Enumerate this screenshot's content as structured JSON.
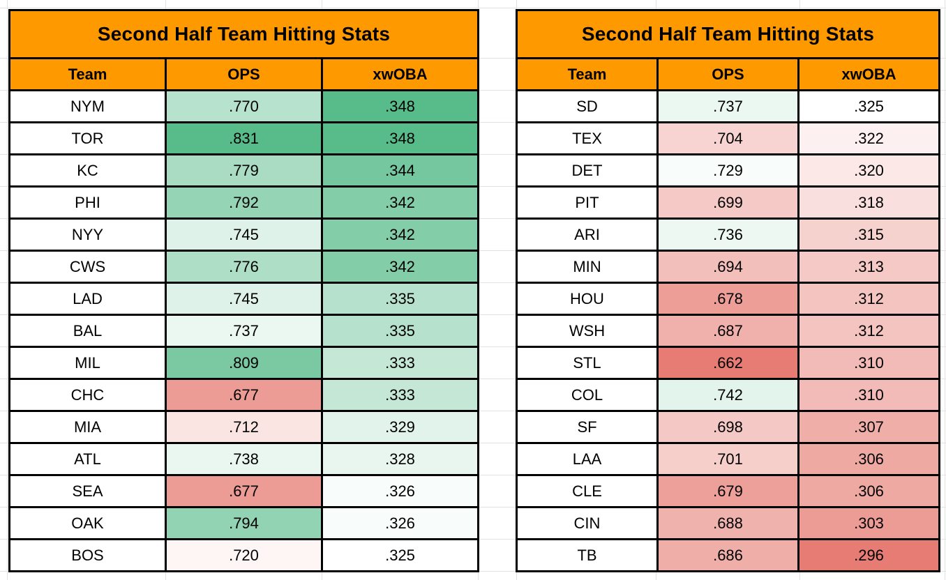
{
  "colors": {
    "header_bg": "#ff9900",
    "border": "#000000",
    "gridline": "#e2e2e2",
    "scale_green_max": "#57bb8a",
    "scale_red_min": "#e67c73",
    "scale_mid": "#ffffff"
  },
  "tables": [
    {
      "title": "Second Half Team Hitting Stats",
      "columns": [
        "Team",
        "OPS",
        "xwOBA"
      ],
      "rows": [
        {
          "team": "NYM",
          "ops": ".770",
          "ops_bg": "#b7e2cd",
          "xwoba": ".348",
          "xwoba_bg": "#57bb8a"
        },
        {
          "team": "TOR",
          "ops": ".831",
          "ops_bg": "#57bb8a",
          "xwoba": ".348",
          "xwoba_bg": "#57bb8a"
        },
        {
          "team": "KC",
          "ops": ".779",
          "ops_bg": "#a9dcc3",
          "xwoba": ".344",
          "xwoba_bg": "#74c79e"
        },
        {
          "team": "PHI",
          "ops": ".792",
          "ops_bg": "#95d4b5",
          "xwoba": ".342",
          "xwoba_bg": "#83cda9"
        },
        {
          "team": "NYY",
          "ops": ".745",
          "ops_bg": "#dff2e9",
          "xwoba": ".342",
          "xwoba_bg": "#83cda9"
        },
        {
          "team": "CWS",
          "ops": ".776",
          "ops_bg": "#aedec6",
          "xwoba": ".342",
          "xwoba_bg": "#83cda9"
        },
        {
          "team": "LAD",
          "ops": ".745",
          "ops_bg": "#dff2e9",
          "xwoba": ".335",
          "xwoba_bg": "#b6e1cc"
        },
        {
          "team": "BAL",
          "ops": ".737",
          "ops_bg": "#ebf7f1",
          "xwoba": ".335",
          "xwoba_bg": "#b6e1cc"
        },
        {
          "team": "MIL",
          "ops": ".809",
          "ops_bg": "#7ac9a2",
          "xwoba": ".333",
          "xwoba_bg": "#c5e7d6"
        },
        {
          "team": "CHC",
          "ops": ".677",
          "ops_bg": "#ec9b95",
          "xwoba": ".333",
          "xwoba_bg": "#c5e7d6"
        },
        {
          "team": "MIA",
          "ops": ".712",
          "ops_bg": "#fae5e3",
          "xwoba": ".329",
          "xwoba_bg": "#e2f3eb"
        },
        {
          "team": "ATL",
          "ops": ".738",
          "ops_bg": "#eaf6f0",
          "xwoba": ".328",
          "xwoba_bg": "#e9f6f0"
        },
        {
          "team": "SEA",
          "ops": ".677",
          "ops_bg": "#ec9b95",
          "xwoba": ".326",
          "xwoba_bg": "#f8fcfa"
        },
        {
          "team": "OAK",
          "ops": ".794",
          "ops_bg": "#91d3b3",
          "xwoba": ".326",
          "xwoba_bg": "#f8fcfa"
        },
        {
          "team": "BOS",
          "ops": ".720",
          "ops_bg": "#fdf6f5",
          "xwoba": ".325",
          "xwoba_bg": "#ffffff"
        }
      ]
    },
    {
      "title": "Second Half Team Hitting Stats",
      "columns": [
        "Team",
        "OPS",
        "xwOBA"
      ],
      "rows": [
        {
          "team": "SD",
          "ops": ".737",
          "ops_bg": "#ebf7f1",
          "xwoba": ".325",
          "xwoba_bg": "#ffffff"
        },
        {
          "team": "TEX",
          "ops": ".704",
          "ops_bg": "#f7d4d1",
          "xwoba": ".322",
          "xwoba_bg": "#fcf1f0"
        },
        {
          "team": "DET",
          "ops": ".729",
          "ops_bg": "#f8fcfa",
          "xwoba": ".320",
          "xwoba_bg": "#fbe8e7"
        },
        {
          "team": "PIT",
          "ops": ".699",
          "ops_bg": "#f5cac6",
          "xwoba": ".318",
          "xwoba_bg": "#f9dfdd"
        },
        {
          "team": "ARI",
          "ops": ".736",
          "ops_bg": "#edf8f2",
          "xwoba": ".315",
          "xwoba_bg": "#f6d2cf"
        },
        {
          "team": "MIN",
          "ops": ".694",
          "ops_bg": "#f3bfbb",
          "xwoba": ".313",
          "xwoba_bg": "#f5c9c5"
        },
        {
          "team": "HOU",
          "ops": ".678",
          "ops_bg": "#ec9e97",
          "xwoba": ".312",
          "xwoba_bg": "#f4c4c0"
        },
        {
          "team": "WSH",
          "ops": ".687",
          "ops_bg": "#f0b0ab",
          "xwoba": ".312",
          "xwoba_bg": "#f4c4c0"
        },
        {
          "team": "STL",
          "ops": ".662",
          "ops_bg": "#e67c73",
          "xwoba": ".310",
          "xwoba_bg": "#f2bbb7"
        },
        {
          "team": "COL",
          "ops": ".742",
          "ops_bg": "#e3f4ec",
          "xwoba": ".310",
          "xwoba_bg": "#f2bbb7"
        },
        {
          "team": "SF",
          "ops": ".698",
          "ops_bg": "#f4c8c4",
          "xwoba": ".307",
          "xwoba_bg": "#efaea8"
        },
        {
          "team": "LAA",
          "ops": ".701",
          "ops_bg": "#f6ceca",
          "xwoba": ".306",
          "xwoba_bg": "#efa9a3"
        },
        {
          "team": "CLE",
          "ops": ".679",
          "ops_bg": "#eda099",
          "xwoba": ".306",
          "xwoba_bg": "#efa9a3"
        },
        {
          "team": "CIN",
          "ops": ".688",
          "ops_bg": "#f0b2ad",
          "xwoba": ".303",
          "xwoba_bg": "#ec9c95"
        },
        {
          "team": "TB",
          "ops": ".686",
          "ops_bg": "#f0aea9",
          "xwoba": ".296",
          "xwoba_bg": "#e67c73"
        }
      ]
    }
  ]
}
